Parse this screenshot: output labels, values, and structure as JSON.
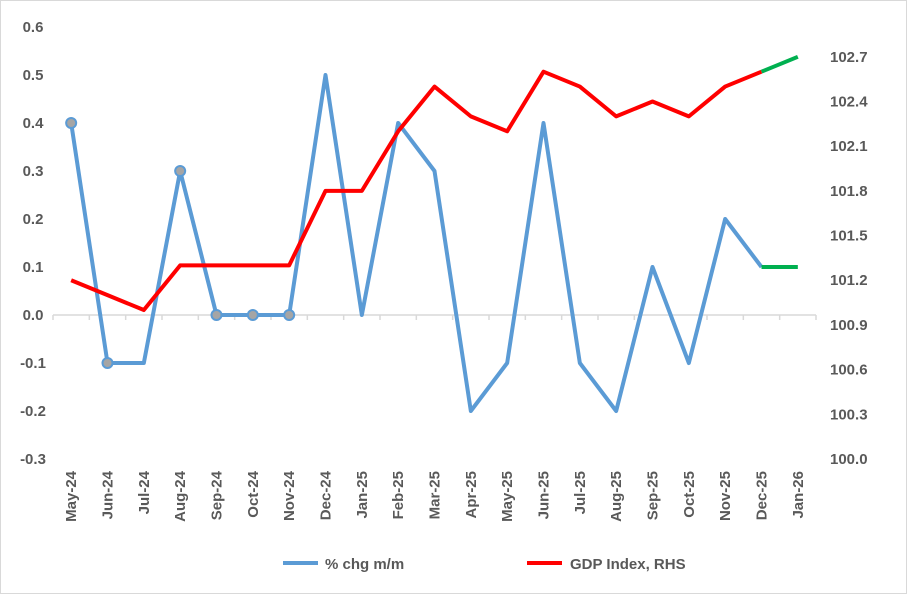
{
  "chart_data": {
    "type": "line",
    "title": "",
    "categories": [
      "May-24",
      "Jun-24",
      "Jul-24",
      "Aug-24",
      "Sep-24",
      "Oct-24",
      "Nov-24",
      "Dec-24",
      "Jan-25",
      "Feb-25",
      "Mar-25",
      "Apr-25",
      "May-25",
      "Jun-25",
      "Jul-25",
      "Aug-25",
      "Sep-25",
      "Oct-25",
      "Nov-25",
      "Dec-25",
      "Jan-26"
    ],
    "y_left": {
      "ylim": [
        -0.3,
        0.6
      ],
      "ticks": [
        "0.6",
        "0.5",
        "0.4",
        "0.3",
        "0.2",
        "0.1",
        "0.0",
        "-0.1",
        "-0.2",
        "-0.3"
      ],
      "tick_values": [
        0.6,
        0.5,
        0.4,
        0.3,
        0.2,
        0.1,
        0,
        -0.1,
        -0.2,
        -0.3
      ]
    },
    "y_right": {
      "ylim": [
        100.0,
        102.9
      ],
      "ticks": [
        "102.7",
        "102.4",
        "102.1",
        "101.8",
        "101.5",
        "101.2",
        "100.9",
        "100.6",
        "100.3",
        "100.0"
      ],
      "tick_values": [
        102.7,
        102.4,
        102.1,
        101.8,
        101.5,
        101.2,
        100.9,
        100.6,
        100.3,
        100.0
      ]
    },
    "series": [
      {
        "name": "% chg m/m",
        "axis": "left",
        "color": "#5B9BD5",
        "values": [
          0.4,
          -0.1,
          -0.1,
          0.3,
          0.0,
          0.0,
          0.0,
          0.5,
          0.0,
          0.4,
          0.3,
          -0.2,
          -0.1,
          0.4,
          -0.1,
          -0.2,
          0.1,
          -0.1,
          0.2,
          0.1,
          0.1
        ],
        "markers_at": [
          0,
          1,
          3,
          4,
          5,
          6
        ],
        "marker_color": "#A5A5A5"
      },
      {
        "name": "GDP Index, RHS",
        "axis": "right",
        "color": "#FF0000",
        "values": [
          101.2,
          101.1,
          101.0,
          101.3,
          101.3,
          101.3,
          101.3,
          101.8,
          101.8,
          102.2,
          102.5,
          102.3,
          102.2,
          102.6,
          102.5,
          102.3,
          102.4,
          102.3,
          102.5,
          102.6,
          102.7
        ]
      }
    ],
    "forecast": {
      "from_index": 19,
      "color": "#00B050"
    },
    "grid": false,
    "legend": "bottom"
  }
}
